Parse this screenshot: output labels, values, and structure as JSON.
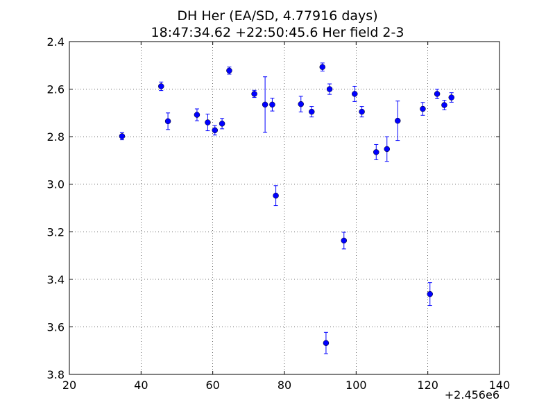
{
  "chart_data": {
    "type": "scatter",
    "title": "DH Her (EA/SD, 4.77916 days)",
    "subtitle": "18:47:34.62 +22:50:45.6 Her field 2-3",
    "xlabel": "",
    "ylabel": "",
    "x_offset_label": "+2.456e6",
    "xlim": [
      20,
      140
    ],
    "ylim": [
      2.4,
      3.8
    ],
    "y_inverted": true,
    "grid": true,
    "x_ticks": [
      "20",
      "40",
      "60",
      "80",
      "100",
      "120",
      "140"
    ],
    "y_ticks": [
      "2.4",
      "2.6",
      "2.8",
      "3.0",
      "3.2",
      "3.4",
      "3.6",
      "3.8"
    ],
    "marker_color": "#0000ff",
    "marker": "circle",
    "series": [
      {
        "points": [
          {
            "x": 34.7,
            "y": 2.798,
            "err": 0.015
          },
          {
            "x": 45.6,
            "y": 2.588,
            "err": 0.018
          },
          {
            "x": 47.5,
            "y": 2.735,
            "err": 0.035
          },
          {
            "x": 55.6,
            "y": 2.708,
            "err": 0.025
          },
          {
            "x": 58.6,
            "y": 2.74,
            "err": 0.035
          },
          {
            "x": 60.6,
            "y": 2.773,
            "err": 0.02
          },
          {
            "x": 62.6,
            "y": 2.745,
            "err": 0.022
          },
          {
            "x": 64.6,
            "y": 2.522,
            "err": 0.015
          },
          {
            "x": 71.6,
            "y": 2.62,
            "err": 0.015
          },
          {
            "x": 74.6,
            "y": 2.665,
            "err": 0.117
          },
          {
            "x": 76.6,
            "y": 2.665,
            "err": 0.027
          },
          {
            "x": 77.6,
            "y": 3.048,
            "err": 0.042
          },
          {
            "x": 84.6,
            "y": 2.663,
            "err": 0.033
          },
          {
            "x": 87.6,
            "y": 2.695,
            "err": 0.022
          },
          {
            "x": 90.6,
            "y": 2.507,
            "err": 0.017
          },
          {
            "x": 91.6,
            "y": 3.668,
            "err": 0.045
          },
          {
            "x": 92.6,
            "y": 2.6,
            "err": 0.022
          },
          {
            "x": 96.6,
            "y": 3.237,
            "err": 0.035
          },
          {
            "x": 99.6,
            "y": 2.62,
            "err": 0.032
          },
          {
            "x": 101.6,
            "y": 2.695,
            "err": 0.022
          },
          {
            "x": 105.6,
            "y": 2.865,
            "err": 0.032
          },
          {
            "x": 108.6,
            "y": 2.852,
            "err": 0.052
          },
          {
            "x": 111.6,
            "y": 2.733,
            "err": 0.083
          },
          {
            "x": 118.6,
            "y": 2.683,
            "err": 0.027
          },
          {
            "x": 120.6,
            "y": 3.462,
            "err": 0.048
          },
          {
            "x": 122.6,
            "y": 2.62,
            "err": 0.02
          },
          {
            "x": 124.6,
            "y": 2.667,
            "err": 0.02
          },
          {
            "x": 126.6,
            "y": 2.635,
            "err": 0.02
          }
        ]
      }
    ]
  }
}
